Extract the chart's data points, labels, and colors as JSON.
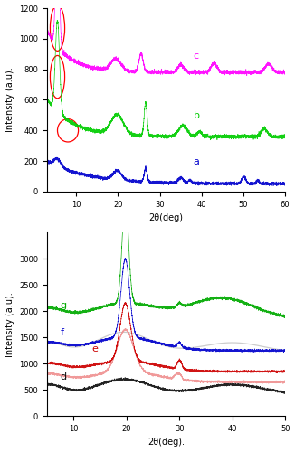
{
  "top_panel": {
    "xlabel": "2θ(deg)",
    "ylabel": "Intensity (a.u).",
    "xlim": [
      3,
      60
    ],
    "ylim": [
      0,
      1200
    ],
    "yticks": [
      0,
      200,
      400,
      600,
      800,
      1000,
      1200
    ],
    "xticks": [
      10,
      20,
      30,
      40,
      50,
      60
    ]
  },
  "bottom_panel": {
    "xlabel": "2θ(deg).",
    "ylabel": "Intensity (a.u).",
    "xlim": [
      5,
      50
    ],
    "ylim": [
      0,
      3500
    ],
    "yticks": [
      0,
      500,
      1000,
      1500,
      2000,
      2500,
      3000
    ],
    "xticks": [
      10,
      20,
      30,
      40,
      50
    ]
  },
  "background_color": "#ffffff",
  "figure_size": [
    3.26,
    5.0
  ],
  "dpi": 100
}
